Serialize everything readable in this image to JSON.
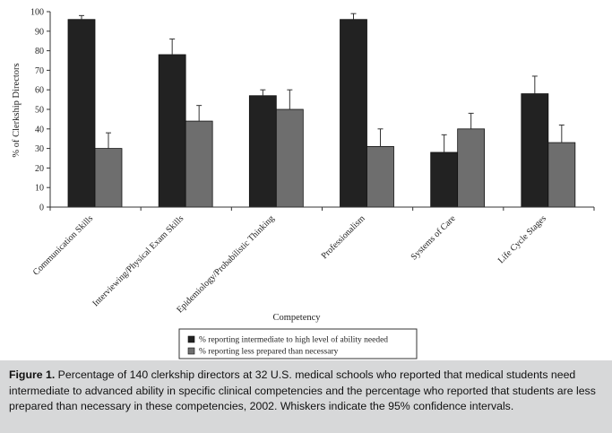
{
  "chart_data": {
    "type": "bar",
    "ylabel": "% of Clerkship Directors",
    "xlabel": "Competency",
    "ylim": [
      0,
      100
    ],
    "yticks": [
      0,
      10,
      20,
      30,
      40,
      50,
      60,
      70,
      80,
      90,
      100
    ],
    "categories": [
      "Communication Skills",
      "Interviewing/Physical Exam Skills",
      "Epidemiology/Probabilistic Thinking",
      "Professionalism",
      "Systems of Care",
      "Life Cycle Stages"
    ],
    "series": [
      {
        "name": "% reporting intermediate to high level of ability needed",
        "color": "#222222",
        "values": [
          96,
          78,
          57,
          96,
          28,
          58
        ],
        "ci_upper": [
          98,
          86,
          60,
          99,
          37,
          67
        ]
      },
      {
        "name": "% reporting less prepared than necessary",
        "color": "#6e6e6e",
        "values": [
          30,
          44,
          50,
          31,
          40,
          33
        ],
        "ci_upper": [
          38,
          52,
          60,
          40,
          48,
          42
        ]
      }
    ],
    "legend_position": "bottom"
  },
  "caption": {
    "label": "Figure 1.",
    "text": "Percentage of 140 clerkship directors at 32 U.S. medical schools who reported that medical students need intermediate to advanced ability in specific clinical competencies and the percentage who reported that students are less prepared than necessary in these competencies, 2002. Whiskers indicate the 95% confidence intervals."
  }
}
